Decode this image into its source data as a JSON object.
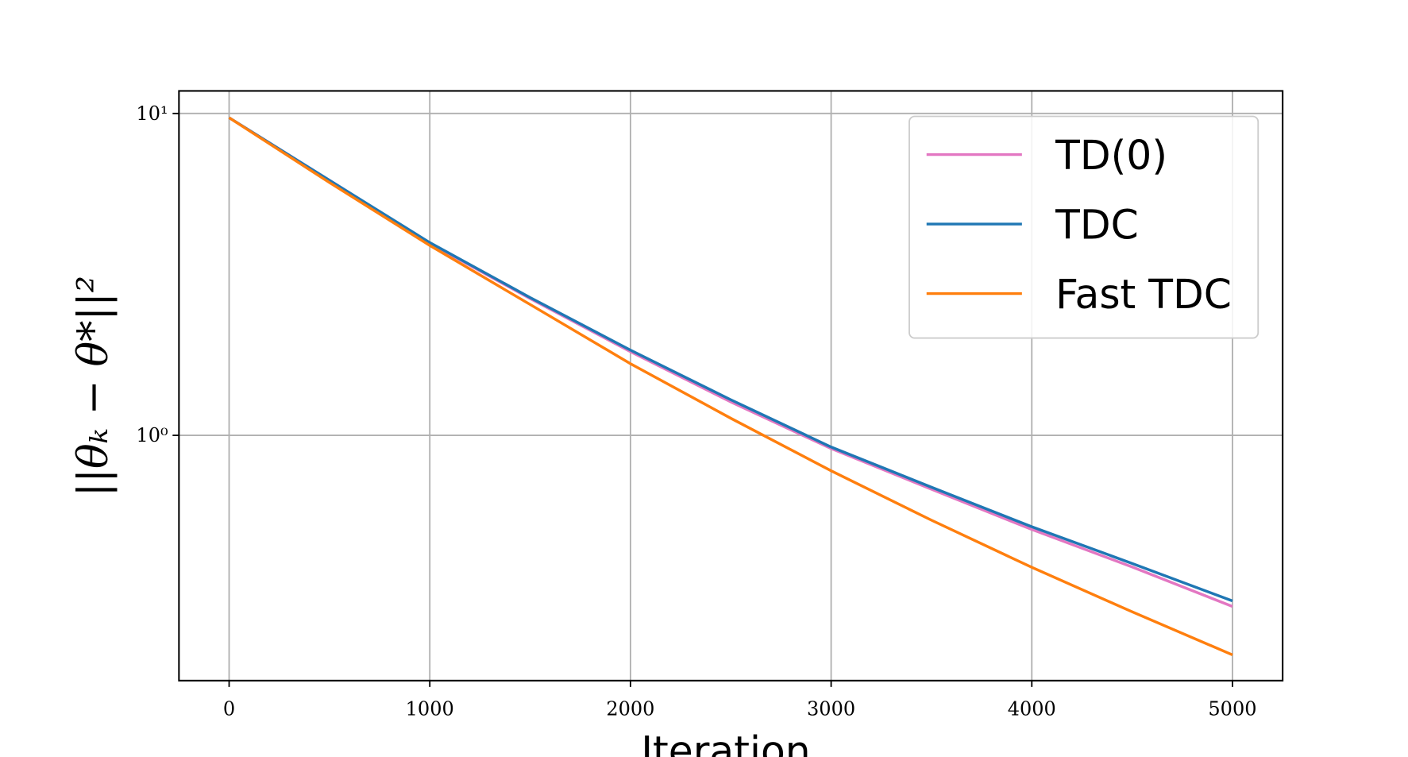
{
  "chart_data": {
    "type": "line",
    "x_label": "Iteration",
    "y_label": "||θₖ − θ*||²",
    "x": [
      0,
      500,
      1000,
      1500,
      2000,
      2500,
      3000,
      3500,
      4000,
      4500,
      5000
    ],
    "series": [
      {
        "name": "TD(0)",
        "color": "#e377c2",
        "values": [
          9.7,
          6.2,
          3.95,
          2.66,
          1.82,
          1.27,
          0.91,
          0.68,
          0.51,
          0.39,
          0.294
        ]
      },
      {
        "name": "TDC",
        "color": "#1f77b4",
        "values": [
          9.7,
          6.2,
          3.97,
          2.68,
          1.84,
          1.29,
          0.92,
          0.69,
          0.52,
          0.4,
          0.306
        ]
      },
      {
        "name": "Fast TDC",
        "color": "#ff7f0e",
        "values": [
          9.7,
          6.1,
          3.89,
          2.55,
          1.67,
          1.13,
          0.776,
          0.545,
          0.389,
          0.283,
          0.208
        ]
      }
    ],
    "xlim": [
      -250,
      5250
    ],
    "xticks": [
      0,
      1000,
      2000,
      3000,
      4000,
      5000
    ],
    "ylim": [
      0.173,
      11.75
    ],
    "yticks": [
      {
        "value": 1,
        "label": "10⁰"
      },
      {
        "value": 10,
        "label": "10¹"
      }
    ],
    "log_y": true,
    "grid": true,
    "legend": "upper right"
  }
}
